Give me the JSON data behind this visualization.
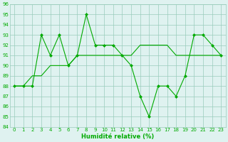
{
  "x": [
    0,
    1,
    2,
    3,
    4,
    5,
    6,
    7,
    8,
    9,
    10,
    11,
    12,
    13,
    14,
    15,
    16,
    17,
    18,
    19,
    20,
    21,
    22,
    23
  ],
  "line1": [
    88,
    88,
    88,
    93,
    91,
    93,
    90,
    91,
    95,
    92,
    92,
    92,
    91,
    90,
    87,
    85,
    88,
    88,
    87,
    89,
    93,
    93,
    92,
    91
  ],
  "line2": [
    88,
    88,
    89,
    89,
    90,
    90,
    90,
    91,
    91,
    91,
    91,
    91,
    91,
    91,
    92,
    92,
    92,
    92,
    91,
    91,
    91,
    91,
    91,
    91
  ],
  "bg_color": "#dff2f0",
  "grid_color": "#99ccbb",
  "line_color": "#00aa00",
  "xlabel": "Humidité relative (%)",
  "ylim": [
    84,
    96
  ],
  "xlim": [
    -0.5,
    23.5
  ],
  "yticks": [
    84,
    85,
    86,
    87,
    88,
    89,
    90,
    91,
    92,
    93,
    94,
    95,
    96
  ],
  "xticks": [
    0,
    1,
    2,
    3,
    4,
    5,
    6,
    7,
    8,
    9,
    10,
    11,
    12,
    13,
    14,
    15,
    16,
    17,
    18,
    19,
    20,
    21,
    22,
    23
  ],
  "tick_fontsize": 5.0,
  "xlabel_fontsize": 6.0,
  "linewidth": 0.8,
  "markersize": 2.5
}
